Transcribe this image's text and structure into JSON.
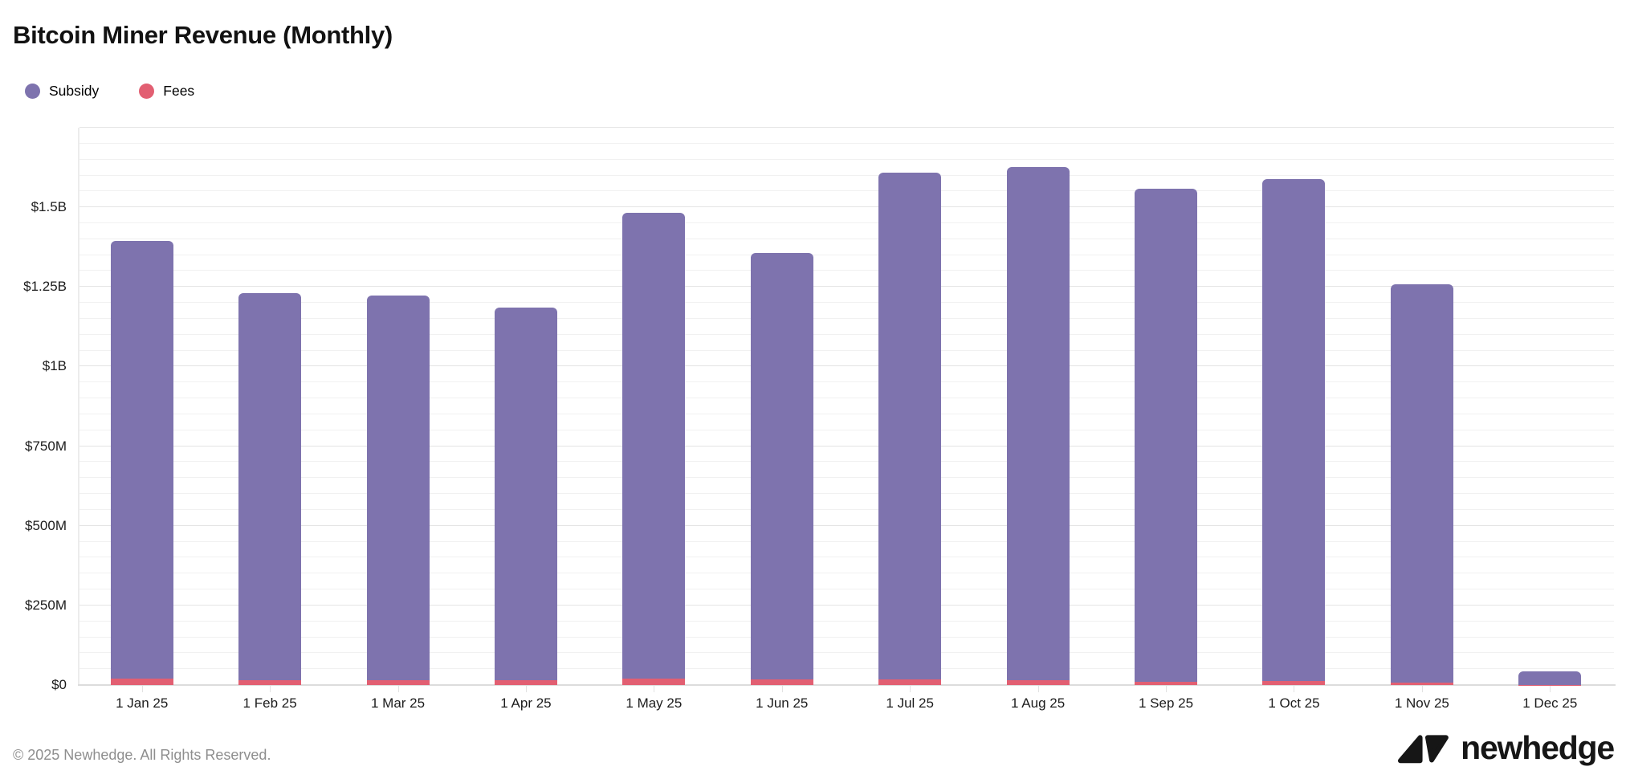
{
  "header": {
    "title": "Bitcoin Miner Revenue (Monthly)"
  },
  "legend": [
    {
      "label": "Subsidy",
      "color": "#7E73AE"
    },
    {
      "label": "Fees",
      "color": "#E25F72"
    }
  ],
  "footer": {
    "copyright": "© 2025 Newhedge. All Rights Reserved.",
    "brand": "newhedge"
  },
  "colors": {
    "subsidy": "#7E73AE",
    "fees": "#E25F72",
    "axis_text": "#1c1c1c",
    "grid_minor": "#f1f1f1",
    "grid_major": "#e4e4e4",
    "baseline": "#dcdcdc"
  },
  "chart_data": {
    "type": "bar",
    "stacked": true,
    "title": "Bitcoin Miner Revenue (Monthly)",
    "xlabel": "",
    "ylabel": "",
    "unit": "USD",
    "values_in": "millions of USD",
    "grid": true,
    "legend_position": "top-left",
    "categories": [
      "1 Jan 25",
      "1 Feb 25",
      "1 Mar 25",
      "1 Apr 25",
      "1 May 25",
      "1 Jun 25",
      "1 Jul 25",
      "1 Aug 25",
      "1 Sep 25",
      "1 Oct 25",
      "1 Nov 25",
      "1 Dec 25"
    ],
    "series": [
      {
        "name": "Subsidy",
        "color": "#7E73AE",
        "values": [
          1376,
          1214,
          1206,
          1168,
          1462,
          1339,
          1590,
          1611,
          1547,
          1576,
          1251,
          41
        ]
      },
      {
        "name": "Fees",
        "color": "#E25F72",
        "values": [
          19,
          16,
          16,
          16,
          20,
          18,
          18,
          15,
          11,
          12,
          8,
          1
        ]
      }
    ],
    "stack_order_bottom_to_top": [
      "Fees",
      "Subsidy"
    ],
    "totals": [
      1395,
      1230,
      1222,
      1184,
      1482,
      1357,
      1608,
      1626,
      1558,
      1588,
      1259,
      42
    ],
    "y_axis": {
      "max": 1750,
      "grid_max": 1750,
      "minor_step": 50,
      "major_step": 250,
      "ticks": [
        {
          "value": 0,
          "label": "$0"
        },
        {
          "value": 250,
          "label": "$250M"
        },
        {
          "value": 500,
          "label": "$500M"
        },
        {
          "value": 750,
          "label": "$750M"
        },
        {
          "value": 1000,
          "label": "$1B"
        },
        {
          "value": 1250,
          "label": "$1.25B"
        },
        {
          "value": 1500,
          "label": "$1.5B"
        }
      ]
    }
  }
}
